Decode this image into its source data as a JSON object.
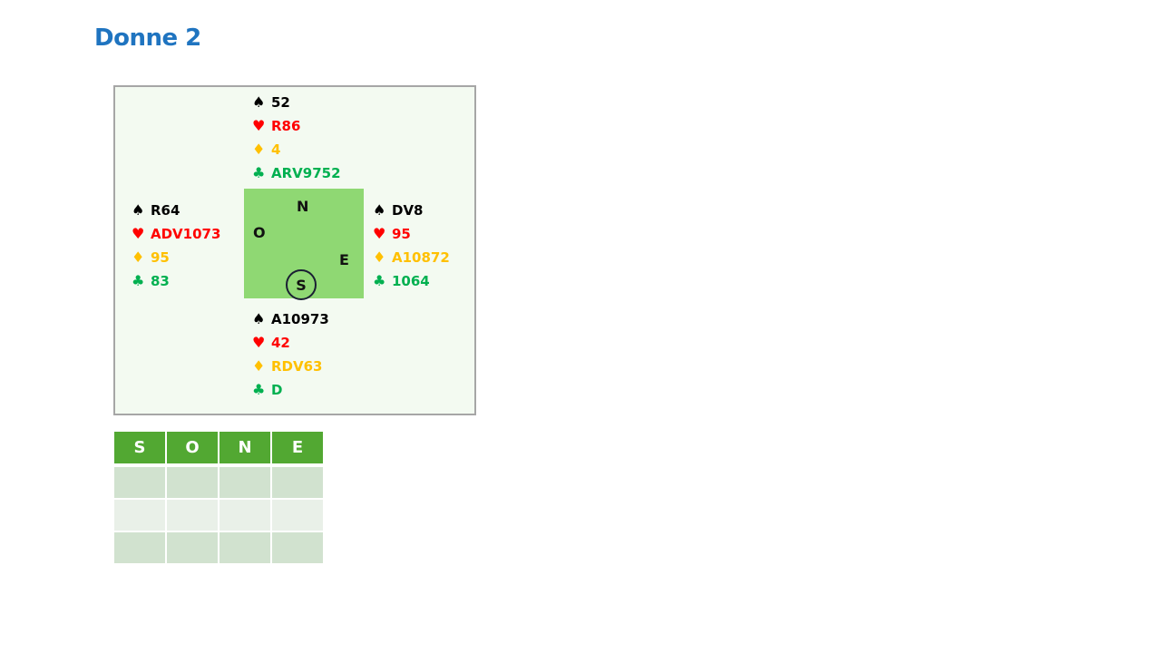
{
  "title": "Donne 2",
  "colors": {
    "spade": "#000000",
    "heart": "#ff0000",
    "diamond": "#ffc000",
    "club": "#00b050"
  },
  "suit_icons": {
    "spade": "♠",
    "heart": "♥",
    "diamond": "♦",
    "club": "♣"
  },
  "hands": {
    "north": {
      "spade": "52",
      "heart": "R86",
      "diamond": "4",
      "club": "ARV9752"
    },
    "west": {
      "spade": "R64",
      "heart": "ADV1073",
      "diamond": "95",
      "club": "83"
    },
    "east": {
      "spade": "DV8",
      "heart": "95",
      "diamond": "A10872",
      "club": "1064"
    },
    "south": {
      "spade": "A10973",
      "heart": "42",
      "diamond": "RDV63",
      "club": "D"
    }
  },
  "compass": {
    "north": "N",
    "west": "O",
    "east": "E",
    "south": "S",
    "dealer": "south"
  },
  "bidding": {
    "headers": [
      "S",
      "O",
      "N",
      "E"
    ],
    "rows": [
      [
        "",
        "",
        "",
        ""
      ],
      [
        "",
        "",
        "",
        ""
      ],
      [
        "",
        "",
        "",
        ""
      ]
    ]
  }
}
